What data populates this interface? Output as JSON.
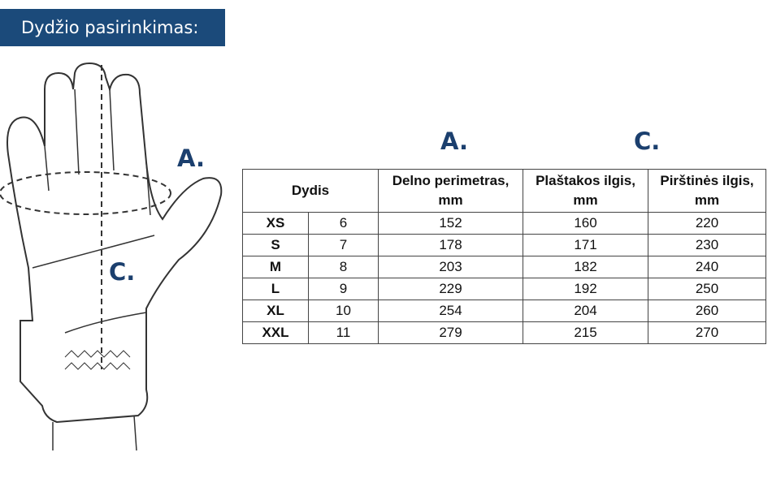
{
  "banner": {
    "title": "Dydžio pasirinkimas:"
  },
  "labels": {
    "a": "A.",
    "c": "C."
  },
  "colors": {
    "brand": "#1b4a7a",
    "label": "#1b3f6e"
  },
  "table": {
    "headers": {
      "size": "Dydis",
      "palm": "Delno perimetras, mm",
      "hand": "Plaštakos ilgis, mm",
      "glove": "Pirštinės ilgis, mm"
    },
    "rows": [
      {
        "size": "XS",
        "num": "6",
        "palm": "152",
        "hand": "160",
        "glove": "220"
      },
      {
        "size": "S",
        "num": "7",
        "palm": "178",
        "hand": "171",
        "glove": "230"
      },
      {
        "size": "M",
        "num": "8",
        "palm": "203",
        "hand": "182",
        "glove": "240"
      },
      {
        "size": "L",
        "num": "9",
        "palm": "229",
        "hand": "192",
        "glove": "250"
      },
      {
        "size": "XL",
        "num": "10",
        "palm": "254",
        "hand": "204",
        "glove": "260"
      },
      {
        "size": "XXL",
        "num": "11",
        "palm": "279",
        "hand": "215",
        "glove": "270"
      }
    ]
  }
}
